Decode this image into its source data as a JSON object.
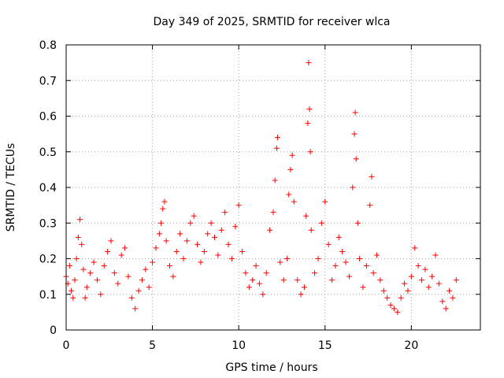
{
  "chart_data": {
    "type": "scatter",
    "title": "Day 349 of 2025, SRMTID for receiver wlca",
    "xlabel": "GPS time / hours",
    "ylabel": "SRMTID / TECUs",
    "xlim": [
      0,
      24
    ],
    "ylim": [
      0,
      0.8
    ],
    "xticks": [
      0,
      5,
      10,
      15,
      20
    ],
    "xtick_labels": [
      "0",
      "5",
      "10",
      "15",
      "20"
    ],
    "yticks": [
      0,
      0.1,
      0.2,
      0.3,
      0.4,
      0.5,
      0.6,
      0.7,
      0.8
    ],
    "ytick_labels": [
      "0",
      "0.1",
      "0.2",
      "0.3",
      "0.4",
      "0.5",
      "0.6",
      "0.7",
      "0.8"
    ],
    "grid": true,
    "marker_color": "#ff0000",
    "series": [
      {
        "name": "SRMTID",
        "marker": "+",
        "points": [
          [
            0.0,
            0.15
          ],
          [
            0.1,
            0.13
          ],
          [
            0.2,
            0.18
          ],
          [
            0.3,
            0.11
          ],
          [
            0.4,
            0.09
          ],
          [
            0.5,
            0.14
          ],
          [
            0.6,
            0.2
          ],
          [
            0.7,
            0.26
          ],
          [
            0.8,
            0.31
          ],
          [
            0.9,
            0.24
          ],
          [
            1.0,
            0.17
          ],
          [
            1.1,
            0.09
          ],
          [
            1.2,
            0.12
          ],
          [
            1.4,
            0.16
          ],
          [
            1.6,
            0.19
          ],
          [
            1.8,
            0.14
          ],
          [
            2.0,
            0.1
          ],
          [
            2.2,
            0.18
          ],
          [
            2.4,
            0.22
          ],
          [
            2.6,
            0.25
          ],
          [
            2.8,
            0.16
          ],
          [
            3.0,
            0.13
          ],
          [
            3.2,
            0.21
          ],
          [
            3.4,
            0.23
          ],
          [
            3.6,
            0.15
          ],
          [
            3.8,
            0.09
          ],
          [
            4.0,
            0.06
          ],
          [
            4.2,
            0.11
          ],
          [
            4.4,
            0.14
          ],
          [
            4.6,
            0.17
          ],
          [
            4.8,
            0.12
          ],
          [
            5.0,
            0.19
          ],
          [
            5.2,
            0.23
          ],
          [
            5.4,
            0.27
          ],
          [
            5.5,
            0.3
          ],
          [
            5.6,
            0.34
          ],
          [
            5.7,
            0.36
          ],
          [
            5.8,
            0.25
          ],
          [
            6.0,
            0.18
          ],
          [
            6.2,
            0.15
          ],
          [
            6.4,
            0.22
          ],
          [
            6.6,
            0.27
          ],
          [
            6.8,
            0.2
          ],
          [
            7.0,
            0.25
          ],
          [
            7.2,
            0.3
          ],
          [
            7.4,
            0.32
          ],
          [
            7.6,
            0.24
          ],
          [
            7.8,
            0.19
          ],
          [
            8.0,
            0.22
          ],
          [
            8.2,
            0.27
          ],
          [
            8.4,
            0.3
          ],
          [
            8.6,
            0.26
          ],
          [
            8.8,
            0.21
          ],
          [
            9.0,
            0.28
          ],
          [
            9.2,
            0.33
          ],
          [
            9.4,
            0.24
          ],
          [
            9.6,
            0.2
          ],
          [
            9.8,
            0.29
          ],
          [
            10.0,
            0.35
          ],
          [
            10.2,
            0.22
          ],
          [
            10.4,
            0.16
          ],
          [
            10.6,
            0.12
          ],
          [
            10.8,
            0.14
          ],
          [
            11.0,
            0.18
          ],
          [
            11.2,
            0.13
          ],
          [
            11.4,
            0.1
          ],
          [
            11.6,
            0.16
          ],
          [
            11.8,
            0.28
          ],
          [
            12.0,
            0.33
          ],
          [
            12.1,
            0.42
          ],
          [
            12.2,
            0.51
          ],
          [
            12.25,
            0.54
          ],
          [
            12.4,
            0.19
          ],
          [
            12.6,
            0.14
          ],
          [
            12.8,
            0.2
          ],
          [
            12.9,
            0.38
          ],
          [
            13.0,
            0.45
          ],
          [
            13.1,
            0.49
          ],
          [
            13.2,
            0.36
          ],
          [
            13.4,
            0.14
          ],
          [
            13.6,
            0.1
          ],
          [
            13.8,
            0.12
          ],
          [
            13.9,
            0.32
          ],
          [
            14.0,
            0.58
          ],
          [
            14.05,
            0.75
          ],
          [
            14.1,
            0.62
          ],
          [
            14.15,
            0.5
          ],
          [
            14.2,
            0.28
          ],
          [
            14.4,
            0.16
          ],
          [
            14.6,
            0.2
          ],
          [
            14.8,
            0.3
          ],
          [
            15.0,
            0.36
          ],
          [
            15.2,
            0.24
          ],
          [
            15.4,
            0.14
          ],
          [
            15.6,
            0.18
          ],
          [
            15.8,
            0.26
          ],
          [
            16.0,
            0.22
          ],
          [
            16.2,
            0.19
          ],
          [
            16.4,
            0.15
          ],
          [
            16.6,
            0.4
          ],
          [
            16.7,
            0.55
          ],
          [
            16.75,
            0.61
          ],
          [
            16.8,
            0.48
          ],
          [
            16.9,
            0.3
          ],
          [
            17.0,
            0.2
          ],
          [
            17.2,
            0.12
          ],
          [
            17.4,
            0.18
          ],
          [
            17.6,
            0.35
          ],
          [
            17.7,
            0.43
          ],
          [
            17.8,
            0.16
          ],
          [
            18.0,
            0.21
          ],
          [
            18.2,
            0.14
          ],
          [
            18.4,
            0.11
          ],
          [
            18.6,
            0.09
          ],
          [
            18.8,
            0.07
          ],
          [
            19.0,
            0.06
          ],
          [
            19.2,
            0.05
          ],
          [
            19.4,
            0.09
          ],
          [
            19.6,
            0.13
          ],
          [
            19.8,
            0.11
          ],
          [
            20.0,
            0.15
          ],
          [
            20.2,
            0.23
          ],
          [
            20.4,
            0.18
          ],
          [
            20.6,
            0.14
          ],
          [
            20.8,
            0.17
          ],
          [
            21.0,
            0.12
          ],
          [
            21.2,
            0.15
          ],
          [
            21.4,
            0.21
          ],
          [
            21.6,
            0.13
          ],
          [
            21.8,
            0.08
          ],
          [
            22.0,
            0.06
          ],
          [
            22.2,
            0.11
          ],
          [
            22.4,
            0.09
          ],
          [
            22.6,
            0.14
          ]
        ]
      }
    ]
  }
}
